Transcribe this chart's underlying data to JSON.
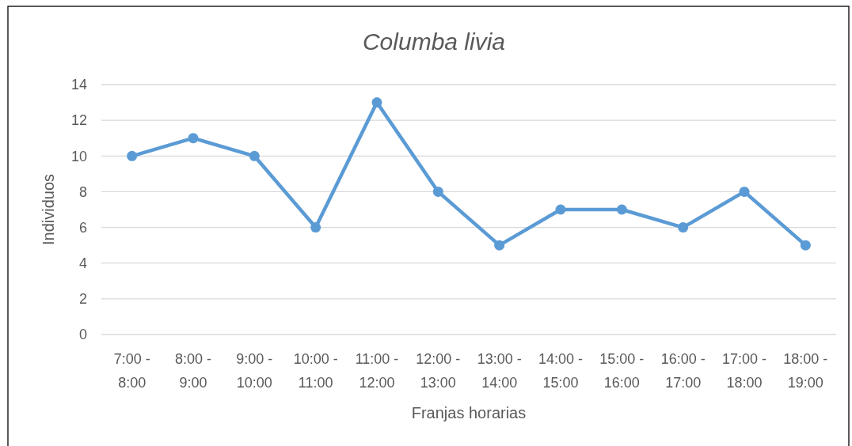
{
  "chart_data": {
    "type": "line",
    "title": "Columba livia",
    "xlabel": "Franjas horarias",
    "ylabel": "Individuos",
    "categories": [
      "7:00 - 8:00",
      "8:00 - 9:00",
      "9:00 - 10:00",
      "10:00 - 11:00",
      "11:00 - 12:00",
      "12:00 - 13:00",
      "13:00 - 14:00",
      "14:00 - 15:00",
      "15:00 - 16:00",
      "16:00 - 17:00",
      "17:00 - 18:00",
      "18:00 - 19:00"
    ],
    "series": [
      {
        "color": "#5b9bd5",
        "values": [
          10,
          11,
          10,
          6,
          13,
          8,
          5,
          7,
          7,
          6,
          8,
          5
        ]
      }
    ],
    "ylim": [
      0,
      14
    ],
    "yticks": [
      0,
      2,
      4,
      6,
      8,
      10,
      12,
      14
    ],
    "grid": "y",
    "marker": "circle",
    "line_style": "solid"
  }
}
